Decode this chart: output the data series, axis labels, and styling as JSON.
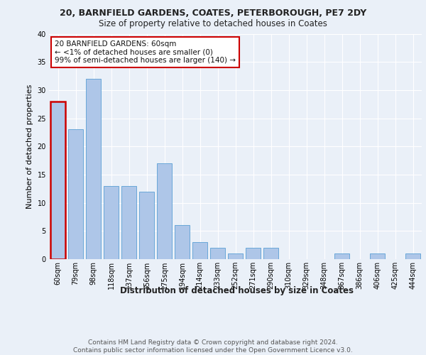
{
  "title1": "20, BARNFIELD GARDENS, COATES, PETERBOROUGH, PE7 2DY",
  "title2": "Size of property relative to detached houses in Coates",
  "xlabel": "Distribution of detached houses by size in Coates",
  "ylabel": "Number of detached properties",
  "categories": [
    "60sqm",
    "79sqm",
    "98sqm",
    "118sqm",
    "137sqm",
    "156sqm",
    "175sqm",
    "194sqm",
    "214sqm",
    "233sqm",
    "252sqm",
    "271sqm",
    "290sqm",
    "310sqm",
    "329sqm",
    "348sqm",
    "367sqm",
    "386sqm",
    "406sqm",
    "425sqm",
    "444sqm"
  ],
  "values": [
    28,
    23,
    32,
    13,
    13,
    12,
    17,
    6,
    3,
    2,
    1,
    2,
    2,
    0,
    0,
    0,
    1,
    0,
    1,
    0,
    1
  ],
  "bar_color": "#aec6e8",
  "bar_edge_color": "#5a9fd4",
  "highlight_bar_index": 0,
  "highlight_color": "#cc0000",
  "annotation_text": "20 BARNFIELD GARDENS: 60sqm\n← <1% of detached houses are smaller (0)\n99% of semi-detached houses are larger (140) →",
  "annotation_box_color": "#ffffff",
  "annotation_box_edge_color": "#cc0000",
  "ylim": [
    0,
    40
  ],
  "yticks": [
    0,
    5,
    10,
    15,
    20,
    25,
    30,
    35,
    40
  ],
  "bg_color": "#eaf0f8",
  "plot_bg_color": "#eaf0f8",
  "grid_color": "#ffffff",
  "footer_text": "Contains HM Land Registry data © Crown copyright and database right 2024.\nContains public sector information licensed under the Open Government Licence v3.0.",
  "title1_fontsize": 9,
  "title2_fontsize": 8.5,
  "xlabel_fontsize": 8.5,
  "ylabel_fontsize": 8,
  "tick_fontsize": 7,
  "footer_fontsize": 6.5,
  "annotation_fontsize": 7.5
}
